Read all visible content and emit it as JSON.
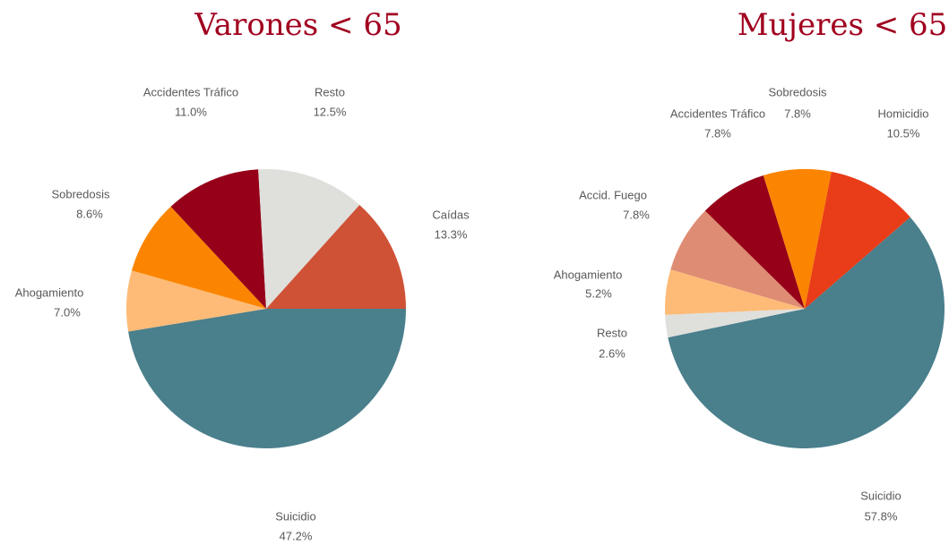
{
  "chart_data": [
    {
      "type": "pie",
      "title": "Varones < 65",
      "categories": [
        "Suicidio",
        "Ahogamiento",
        "Sobredosis",
        "Accidentes Tráfico",
        "Resto",
        "Caídas"
      ],
      "values": [
        47.2,
        7.0,
        8.6,
        11.0,
        12.5,
        13.3
      ],
      "value_labels": [
        "47.2%",
        "7.0%",
        "8.6%",
        "11.0%",
        "12.5%",
        "13.3%"
      ],
      "colors": [
        "#4a7f8c",
        "#fdbb77",
        "#fb8500",
        "#960018",
        "#dfdfdc",
        "#cf5236"
      ]
    },
    {
      "type": "pie",
      "title": "Mujeres < 65",
      "categories": [
        "Suicidio",
        "Resto",
        "Ahogamiento",
        "Accid. Fuego",
        "Accidentes Tráfico",
        "Sobredosis",
        "Homicidio"
      ],
      "values": [
        57.8,
        2.6,
        5.2,
        7.8,
        7.8,
        7.8,
        10.5
      ],
      "value_labels": [
        "57.8%",
        "2.6%",
        "5.2%",
        "7.8%",
        "7.8%",
        "7.8%",
        "10.5%"
      ],
      "colors": [
        "#4a7f8c",
        "#dfdfdc",
        "#fdbb77",
        "#de8c74",
        "#960018",
        "#fb8500",
        "#e93c18"
      ]
    }
  ]
}
